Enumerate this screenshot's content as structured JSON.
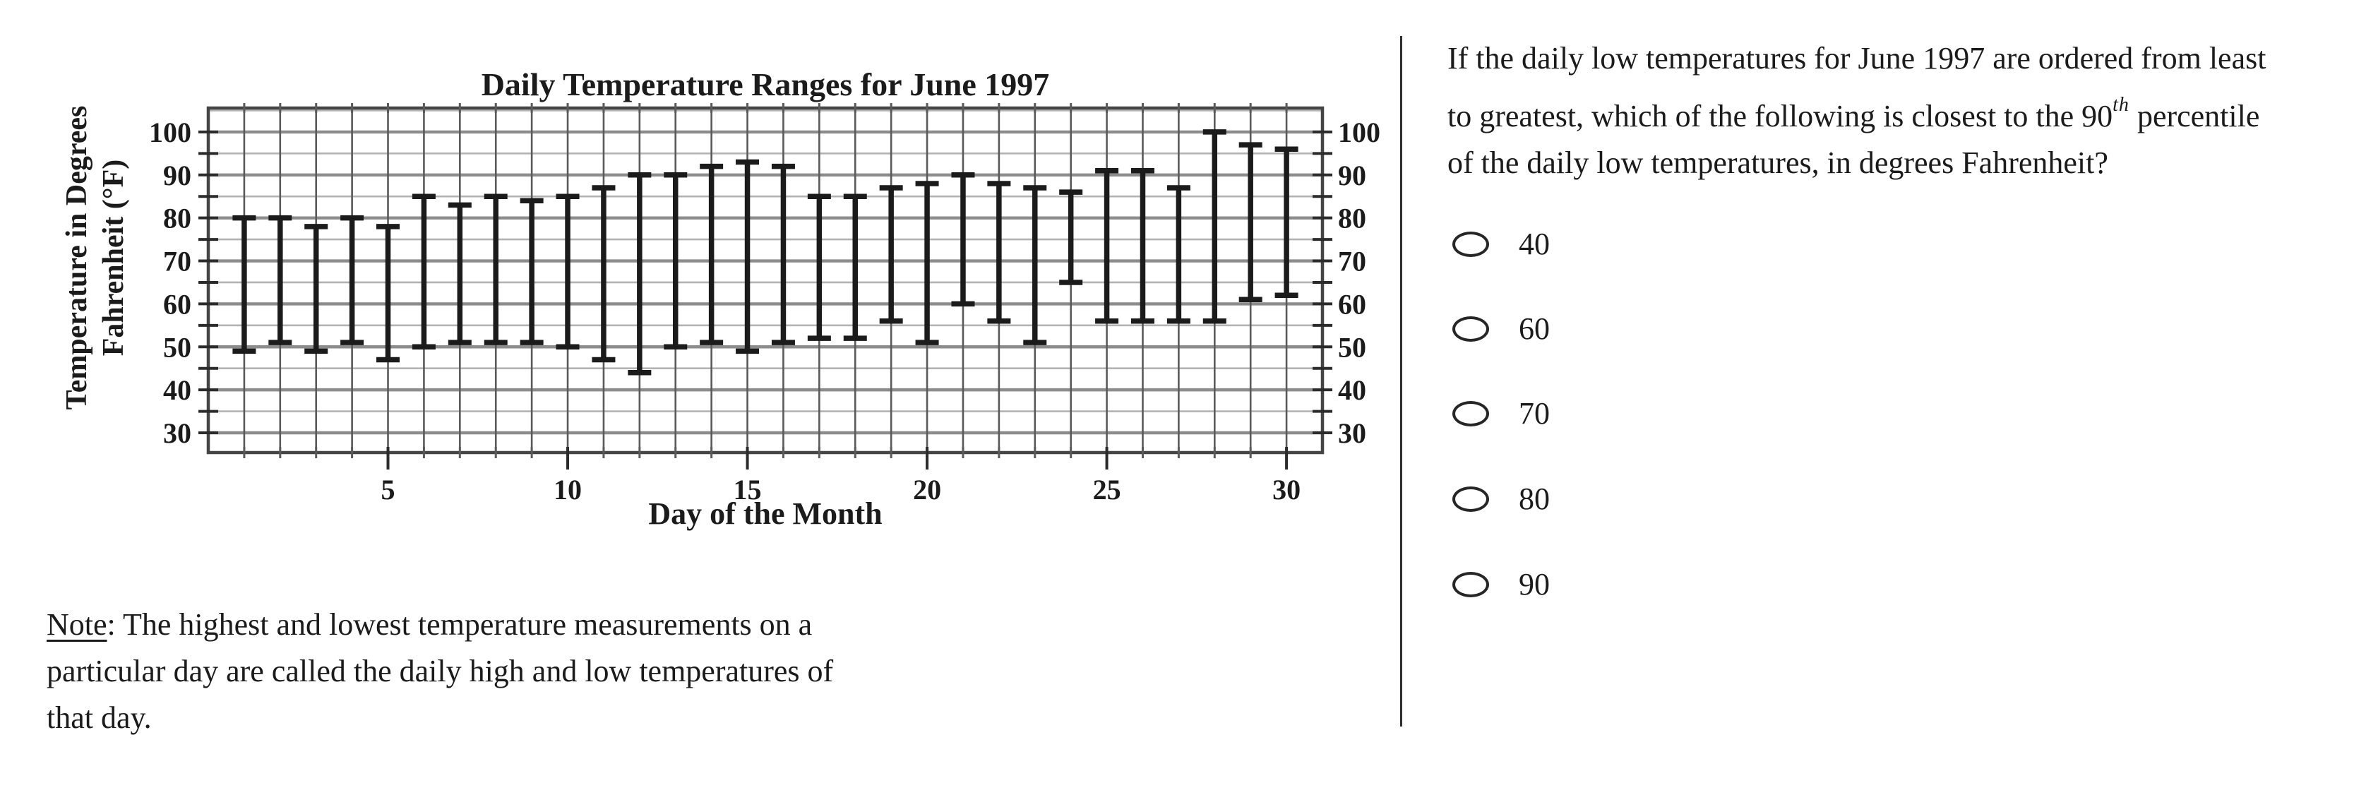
{
  "chart_data": {
    "type": "bar",
    "subtype": "high-low range bars with end caps",
    "title": "Daily Temperature Ranges for June 1997",
    "xlabel": "Day of the Month",
    "ylabel_line1": "Temperature in Degrees",
    "ylabel_line2": "Fahrenheit (°F)",
    "x": [
      1,
      2,
      3,
      4,
      5,
      6,
      7,
      8,
      9,
      10,
      11,
      12,
      13,
      14,
      15,
      16,
      17,
      18,
      19,
      20,
      21,
      22,
      23,
      24,
      25,
      26,
      27,
      28,
      29,
      30
    ],
    "series": [
      {
        "name": "daily high",
        "values": [
          80,
          80,
          78,
          80,
          78,
          85,
          83,
          85,
          84,
          85,
          87,
          90,
          90,
          92,
          93,
          92,
          85,
          85,
          87,
          88,
          90,
          88,
          87,
          86,
          91,
          91,
          87,
          100,
          97,
          96
        ]
      },
      {
        "name": "daily low",
        "values": [
          49,
          51,
          49,
          51,
          47,
          50,
          51,
          51,
          51,
          50,
          47,
          44,
          50,
          51,
          49,
          51,
          52,
          52,
          56,
          51,
          60,
          56,
          51,
          65,
          56,
          56,
          56,
          56,
          61,
          62
        ]
      }
    ],
    "ylim": [
      25,
      105
    ],
    "yticks": [
      30,
      40,
      50,
      60,
      70,
      80,
      90,
      100
    ],
    "ytick_minor_step": 5,
    "xticks": [
      5,
      10,
      15,
      20,
      25,
      30
    ],
    "grid": "both",
    "ytick_labels_sides": "left and right",
    "legend": "none"
  },
  "note": {
    "label": "Note",
    "line1_rest": ": The highest and lowest temperature measurements on a",
    "line2": "particular day are called the daily high and low temperatures of",
    "line3": "that day."
  },
  "question": {
    "line1": "If the daily low temperatures for June 1997 are ordered from least",
    "line2_pre": "to greatest, which of the following is closest to the 90",
    "line2_sup": "th",
    "line2_post": " percentile",
    "line3": "of the daily low temperatures, in degrees Fahrenheit?"
  },
  "options": [
    "40",
    "60",
    "70",
    "80",
    "90"
  ],
  "colors": {
    "ink": "#1b1b1b",
    "grid_major": "#8c8c8c",
    "grid_minor": "#b3b3b3",
    "grid_vertical": "#5a5a5a",
    "chart_border": "#454545",
    "tick": "#2b2b2b",
    "divider": "#2f2f2f",
    "radio_border": "#262626"
  }
}
